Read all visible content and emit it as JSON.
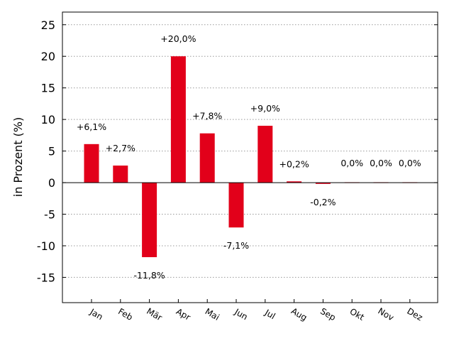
{
  "chart_data": {
    "type": "bar",
    "ylabel": "in Prozent (%)",
    "categories": [
      "Jan",
      "Feb",
      "Mär",
      "Apr",
      "Mai",
      "Jun",
      "Jul",
      "Aug",
      "Sep",
      "Okt",
      "Nov",
      "Dez"
    ],
    "values": [
      6.1,
      2.7,
      -11.8,
      20.0,
      7.8,
      -7.1,
      9.0,
      0.2,
      -0.2,
      0.0,
      0.0,
      0.0
    ],
    "data_labels": [
      "+6,1%",
      "+2,7%",
      "-11,8%",
      "+20,0%",
      "+7,8%",
      "-7,1%",
      "+9,0%",
      "+0,2%",
      "-0,2%",
      "0,0%",
      "0,0%",
      "0,0%"
    ],
    "ylim": [
      -19,
      27
    ],
    "yticks": [
      -15,
      -10,
      -5,
      0,
      5,
      10,
      15,
      20,
      25
    ],
    "grid": "horizontal dotted",
    "legend": "none",
    "bar_color": "#e2001a"
  }
}
